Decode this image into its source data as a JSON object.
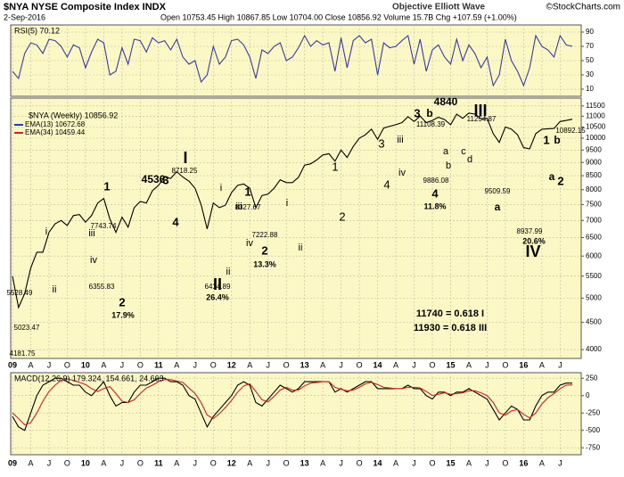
{
  "header": {
    "title": "$NYA NYSE Composite Index INDX",
    "date": "2-Sep-2016",
    "quote": "Open 10753.45 High 10867.85 Low 10704.00 Close 10856.92 Volume 15.7B Chg +107.59 (+1.00%)",
    "subtitle": "Objective Elliott Wave",
    "brand": "©StockCharts.com"
  },
  "chart_data": [
    {
      "type": "line",
      "title": "RSI(5) 70.12",
      "ylim": [
        0,
        100
      ],
      "yticks": [
        10,
        30,
        50,
        70,
        90
      ],
      "grid": true,
      "series": [
        {
          "color": "#3a3aa8",
          "values": [
            35,
            25,
            60,
            75,
            72,
            60,
            80,
            78,
            70,
            55,
            72,
            68,
            40,
            62,
            80,
            75,
            30,
            35,
            68,
            45,
            80,
            78,
            62,
            82,
            75,
            78,
            65,
            80,
            55,
            45,
            50,
            20,
            30,
            70,
            45,
            55,
            78,
            80,
            72,
            55,
            25,
            65,
            60,
            70,
            75,
            50,
            55,
            68,
            85,
            70,
            78,
            72,
            75,
            35,
            82,
            40,
            78,
            85,
            75,
            80,
            30,
            75,
            68,
            70,
            78,
            85,
            45,
            80,
            35,
            65,
            72,
            55,
            45,
            80,
            50,
            72,
            60,
            40,
            55,
            15,
            30,
            80,
            50,
            35,
            15,
            40,
            85,
            70,
            65,
            55,
            85,
            72,
            70
          ]
        }
      ]
    },
    {
      "type": "line",
      "log": true,
      "grid": true,
      "ylim": [
        3850,
        11900
      ],
      "yticks": [
        4000,
        4500,
        5000,
        5500,
        6000,
        6500,
        7000,
        7500,
        8000,
        8500,
        9000,
        9500,
        10000,
        10500,
        11000,
        11500
      ],
      "categories": [
        "09",
        null,
        null,
        "A",
        null,
        null,
        "J",
        null,
        null,
        "O",
        null,
        null,
        "10",
        null,
        null,
        "A",
        null,
        null,
        "J",
        null,
        null,
        "O",
        null,
        null,
        "11",
        null,
        null,
        "A",
        null,
        null,
        "J",
        null,
        null,
        "O",
        null,
        null,
        "12",
        null,
        null,
        "A",
        null,
        null,
        "J",
        null,
        null,
        "O",
        null,
        null,
        "13",
        null,
        null,
        "A",
        null,
        null,
        "J",
        null,
        null,
        "O",
        null,
        null,
        "14",
        null,
        null,
        "A",
        null,
        null,
        "J",
        null,
        null,
        "O",
        null,
        null,
        "15",
        null,
        null,
        "A",
        null,
        null,
        "J",
        null,
        null,
        "O",
        null,
        null,
        "16",
        null,
        null,
        "A",
        null,
        null,
        "J",
        null,
        null
      ],
      "series": [
        {
          "name": "$NYA (Weekly) 10856.92",
          "color": "#000000",
          "values": [
            5500,
            4800,
            5100,
            5700,
            6100,
            6100,
            6650,
            6900,
            7000,
            6850,
            7150,
            7185,
            6950,
            7150,
            7550,
            7700,
            7050,
            6650,
            7100,
            6800,
            7400,
            7600,
            7550,
            7965,
            8150,
            8450,
            8400,
            8650,
            8450,
            8300,
            8050,
            7500,
            6750,
            7550,
            7400,
            7480,
            7900,
            8150,
            8200,
            8050,
            7400,
            7800,
            7850,
            8050,
            8350,
            8250,
            8250,
            8440,
            8900,
            8950,
            9100,
            9300,
            9350,
            9050,
            9500,
            9200,
            9650,
            10000,
            10150,
            10400,
            9950,
            10450,
            10530,
            10600,
            10700,
            10980,
            10750,
            11000,
            10700,
            10800,
            10950,
            10840,
            10600,
            11100,
            10900,
            11150,
            11100,
            10880,
            10900,
            10200,
            9820,
            10500,
            10400,
            10150,
            9600,
            9550,
            10200,
            10400,
            10420,
            10430,
            10750,
            10800,
            10856.92
          ]
        }
      ],
      "overlays": [
        {
          "name": "EMA(13) 10672.68",
          "color": "#1f3fbf"
        },
        {
          "name": "EMA(34) 10459.44",
          "color": "#d02020"
        }
      ],
      "annotations": [
        {
          "text": "4840",
          "color": "#e01010"
        },
        {
          "text": "4536",
          "color": "#e01010"
        },
        {
          "text": "I",
          "color": "#1a3fbf"
        },
        {
          "text": "II",
          "color": "#1a3fbf"
        },
        {
          "text": "III",
          "color": "#1a3fbf"
        },
        {
          "text": "IV",
          "color": "#1a3fbf"
        },
        {
          "text": "1",
          "color": "#000000"
        },
        {
          "text": "3",
          "color": "#000000"
        },
        {
          "text": "4",
          "color": "#000000"
        },
        {
          "text": "2",
          "color": "#000000"
        },
        {
          "text": "17.9%",
          "color": "#e01010"
        },
        {
          "text": "1",
          "color": "#000000"
        },
        {
          "text": "2",
          "color": "#000000"
        },
        {
          "text": "13.3%",
          "color": "#e01010"
        },
        {
          "text": "26.4%",
          "color": "#e01010"
        },
        {
          "text": "3",
          "color": "#000000"
        },
        {
          "text": "b",
          "color": "#8a1a6a"
        },
        {
          "text": "4",
          "color": "#000000"
        },
        {
          "text": "11.8%",
          "color": "#e01010"
        },
        {
          "text": "a",
          "color": "#000000"
        },
        {
          "text": "20.6%",
          "color": "#e01010"
        },
        {
          "text": "1",
          "color": "#000000"
        },
        {
          "text": "2",
          "color": "#000000"
        },
        {
          "text": "b",
          "color": "#8a1a6a"
        },
        {
          "text": "a",
          "color": "#8a1a6a"
        },
        {
          "text": "1",
          "color": "#2a3aa0"
        },
        {
          "text": "2",
          "color": "#2a3aa0"
        },
        {
          "text": "3",
          "color": "#2a3aa0"
        },
        {
          "text": "4",
          "color": "#2a3aa0"
        },
        {
          "text": "i",
          "color": "#8a1a6a"
        },
        {
          "text": "ii",
          "color": "#8a1a6a"
        },
        {
          "text": "iii",
          "color": "#8a1a6a"
        },
        {
          "text": "iv",
          "color": "#8a1a6a"
        },
        {
          "text": "i",
          "color": "#8a1a6a"
        },
        {
          "text": "ii",
          "color": "#8a1a6a"
        },
        {
          "text": "iii",
          "color": "#8a1a6a"
        },
        {
          "text": "iv",
          "color": "#8a1a6a"
        },
        {
          "text": "i",
          "color": "#8a1a6a"
        },
        {
          "text": "ii",
          "color": "#8a1a6a"
        },
        {
          "text": "iii",
          "color": "#8a1a6a"
        },
        {
          "text": "iv",
          "color": "#8a1a6a"
        },
        {
          "text": "a",
          "color": "#8a1a6a"
        },
        {
          "text": "b",
          "color": "#8a1a6a"
        },
        {
          "text": "c",
          "color": "#8a1a6a"
        },
        {
          "text": "d",
          "color": "#8a1a6a"
        },
        {
          "text": "5528.49",
          "color": "#000000"
        },
        {
          "text": "5023.47",
          "color": "#000000"
        },
        {
          "text": "4181.75",
          "color": "#000000"
        },
        {
          "text": "7743.74",
          "color": "#000000"
        },
        {
          "text": "6355.83",
          "color": "#000000"
        },
        {
          "text": "8718.25",
          "color": "#000000"
        },
        {
          "text": "8327.67",
          "color": "#000000"
        },
        {
          "text": "6414.89",
          "color": "#000000"
        },
        {
          "text": "7222.88",
          "color": "#000000"
        },
        {
          "text": "11108.39",
          "color": "#000000"
        },
        {
          "text": "9886.08",
          "color": "#000000"
        },
        {
          "text": "11254.87",
          "color": "#000000"
        },
        {
          "text": "9509.59",
          "color": "#000000"
        },
        {
          "text": "8937.99",
          "color": "#000000"
        },
        {
          "text": "10892.15",
          "color": "#000000"
        },
        {
          "text": "11740 = 0.618 I",
          "color": "#e01010"
        },
        {
          "text": "11930 = 0.618 III",
          "color": "#e01010"
        }
      ]
    },
    {
      "type": "line",
      "title": "MACD(12,26,9) 179.324, 154.661, 24.663",
      "ylim": [
        -850,
        330
      ],
      "yticks": [
        250,
        0,
        -250,
        -500,
        -750
      ],
      "grid": true,
      "series": [
        {
          "color": "#000000",
          "values": [
            -300,
            -450,
            -500,
            -250,
            0,
            150,
            200,
            250,
            250,
            200,
            150,
            150,
            50,
            0,
            100,
            200,
            0,
            -150,
            -100,
            -100,
            50,
            150,
            150,
            200,
            250,
            250,
            200,
            200,
            150,
            0,
            -50,
            -250,
            -450,
            -300,
            -200,
            -100,
            0,
            150,
            200,
            150,
            -100,
            -150,
            -50,
            50,
            150,
            100,
            50,
            100,
            200,
            200,
            200,
            200,
            200,
            50,
            100,
            50,
            100,
            150,
            200,
            200,
            100,
            100,
            100,
            100,
            100,
            150,
            100,
            100,
            0,
            -50,
            50,
            50,
            0,
            50,
            50,
            100,
            50,
            0,
            -50,
            -200,
            -350,
            -250,
            -150,
            -200,
            -350,
            -350,
            -150,
            0,
            50,
            50,
            150,
            180,
            179.324
          ]
        },
        {
          "color": "#d02020",
          "values": [
            -250,
            -330,
            -420,
            -390,
            -250,
            -80,
            60,
            150,
            220,
            240,
            220,
            190,
            160,
            100,
            60,
            100,
            130,
            30,
            -80,
            -100,
            -60,
            30,
            110,
            150,
            200,
            230,
            230,
            210,
            190,
            110,
            30,
            -100,
            -280,
            -330,
            -260,
            -170,
            -70,
            50,
            140,
            170,
            60,
            -60,
            -90,
            -10,
            80,
            120,
            80,
            80,
            140,
            180,
            190,
            200,
            200,
            120,
            90,
            70,
            80,
            120,
            170,
            190,
            160,
            120,
            110,
            100,
            100,
            120,
            120,
            110,
            60,
            0,
            20,
            40,
            20,
            30,
            40,
            70,
            70,
            40,
            0,
            -100,
            -250,
            -280,
            -220,
            -200,
            -270,
            -320,
            -250,
            -120,
            -30,
            30,
            100,
            150,
            154.661
          ]
        }
      ]
    }
  ]
}
